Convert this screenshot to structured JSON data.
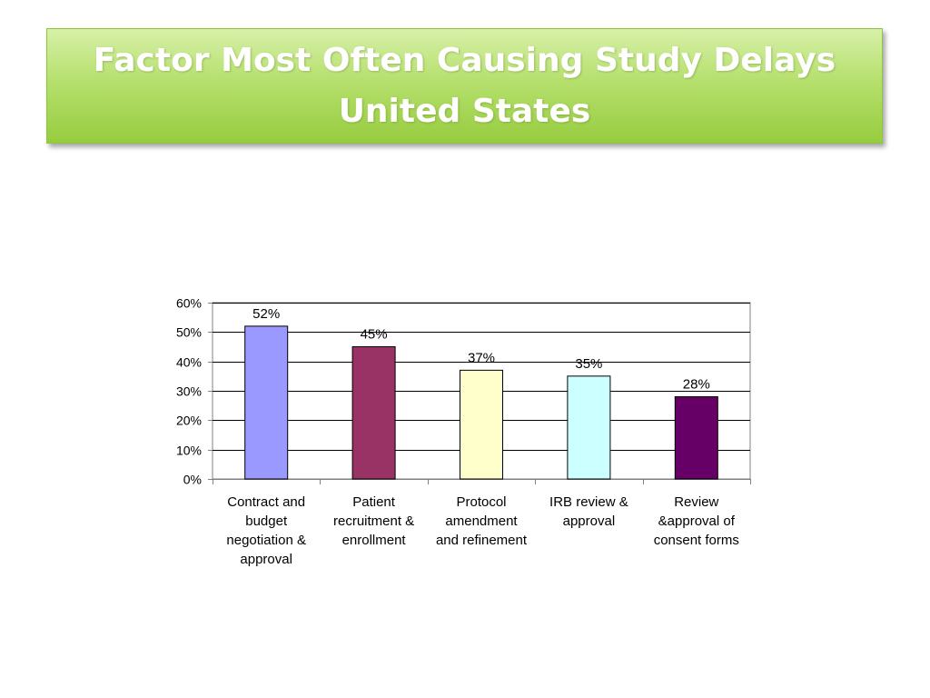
{
  "title": {
    "line1": "Factor Most Often Causing Study Delays",
    "line2": "United States"
  },
  "chart_data": {
    "type": "bar",
    "categories": [
      "Contract and\nbudget\nnegotiation &\napproval",
      "Patient\nrecruitment &\nenrollment",
      "Protocol\namendment\nand refinement",
      "IRB review &\napproval",
      "Review\n&approval of\nconsent forms"
    ],
    "values": [
      52,
      45,
      37,
      35,
      28
    ],
    "data_labels": [
      "52%",
      "45%",
      "37%",
      "35%",
      "28%"
    ],
    "colors": [
      "#9999ff",
      "#993366",
      "#ffffcc",
      "#ccffff",
      "#660066"
    ],
    "y_ticks": [
      "0%",
      "10%",
      "20%",
      "30%",
      "40%",
      "50%",
      "60%"
    ],
    "ylim": [
      0,
      60
    ],
    "grid": true,
    "legend": "none"
  }
}
